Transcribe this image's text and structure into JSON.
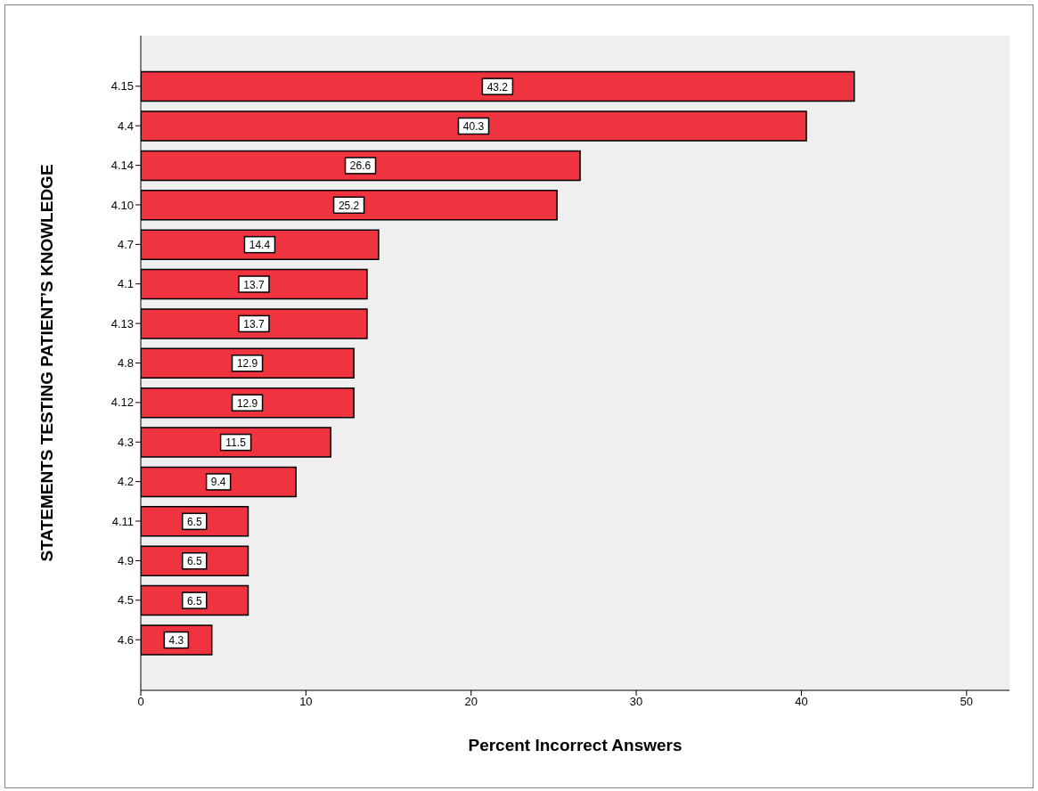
{
  "chart_data": {
    "type": "bar",
    "orientation": "horizontal",
    "xlabel": "Percent Incorrect Answers",
    "ylabel": "STATEMENTS TESTING PATIENT’S KNOWLEDGE",
    "categories": [
      "4.15",
      "4.4",
      "4.14",
      "4.10",
      "4.7",
      "4.1",
      "4.13",
      "4.8",
      "4.12",
      "4.3",
      "4.2",
      "4.11",
      "4.9",
      "4.5",
      "4.6"
    ],
    "values": [
      43.2,
      40.3,
      26.6,
      25.2,
      14.4,
      13.7,
      13.7,
      12.9,
      12.9,
      11.5,
      9.4,
      6.5,
      6.5,
      6.5,
      4.3
    ],
    "color": "#f0343f",
    "xlim": [
      0,
      52.6
    ],
    "xticks": [
      0,
      10,
      20,
      30,
      40,
      50
    ],
    "data_labels": true
  }
}
